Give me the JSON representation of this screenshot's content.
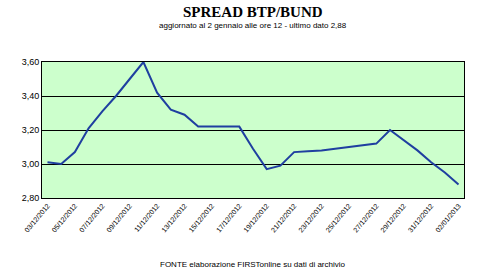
{
  "chart_data": {
    "type": "line",
    "title": "SPREAD BTP/BUND",
    "subtitle": "aggiornato al 2 gennaio alle ore 12 - ultimo dato 2,88",
    "annotations": [
      "FONTE elaborazione FIRSTonline su dati di archivio"
    ],
    "categories": [
      "03/12/2012",
      null,
      "05/12/2012",
      null,
      "07/12/2012",
      null,
      "09/12/2012",
      null,
      "11/12/2012",
      null,
      "13/12/2012",
      null,
      "15/12/2012",
      null,
      "17/12/2012",
      null,
      "19/12/2012",
      null,
      "21/12/2012",
      null,
      "23/12/2012",
      null,
      "25/12/2012",
      null,
      "27/12/2012",
      null,
      "29/12/2012",
      null,
      "31/12/2012",
      null,
      "02/01/2013"
    ],
    "values": [
      3.01,
      3.0,
      3.07,
      3.21,
      3.31,
      3.4,
      3.5,
      3.6,
      3.42,
      3.32,
      3.29,
      3.22,
      3.22,
      3.22,
      3.22,
      3.09,
      2.97,
      2.99,
      3.07,
      3.075,
      3.08,
      3.09,
      3.1,
      3.11,
      3.12,
      3.2,
      3.14,
      3.08,
      3.01,
      2.95,
      2.88
    ],
    "color": "#1f3fa0",
    "ylim": [
      2.8,
      3.6
    ],
    "yticks": [
      {
        "value": 2.8,
        "label": "2,80"
      },
      {
        "value": 3.0,
        "label": "3,00"
      },
      {
        "value": 3.2,
        "label": "3,20"
      },
      {
        "value": 3.4,
        "label": "3,40"
      },
      {
        "value": 3.6,
        "label": "3,60"
      }
    ],
    "grid": true
  }
}
